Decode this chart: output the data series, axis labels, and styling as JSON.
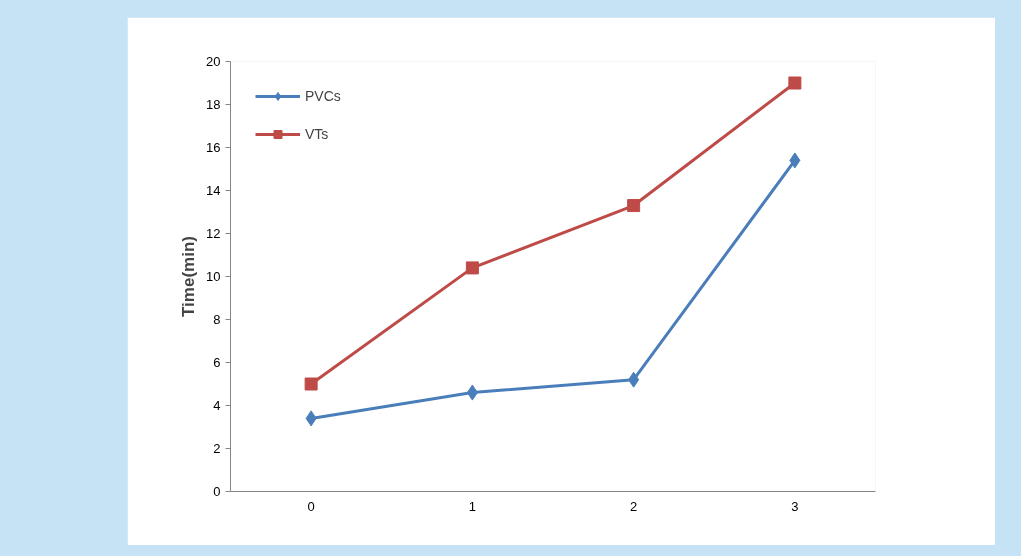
{
  "chart_data": {
    "type": "line",
    "ylabel": "Time(min)",
    "categories": [
      "0",
      "1",
      "2",
      "3"
    ],
    "series": [
      {
        "name": "PVCs",
        "color": "#4a7ebb",
        "marker": "diamond",
        "values": [
          3.4,
          4.6,
          5.2,
          15.4
        ]
      },
      {
        "name": "VTs",
        "color": "#be4b48",
        "marker": "square",
        "values": [
          5.0,
          10.4,
          13.3,
          19.0
        ]
      }
    ],
    "ylim": [
      0,
      20
    ],
    "yticks": [
      0,
      2,
      4,
      6,
      8,
      10,
      12,
      14,
      16,
      18,
      20
    ],
    "grid": false,
    "legend": "top left",
    "line_style": "solid"
  }
}
